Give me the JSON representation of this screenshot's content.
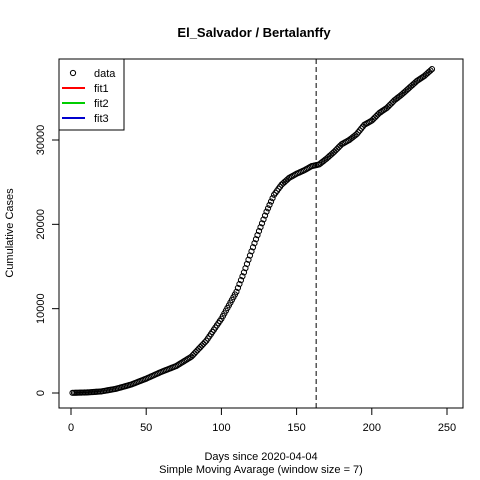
{
  "chart_data": {
    "type": "scatter",
    "title": "El_Salvador / Bertalanffy",
    "xlabel": "Days since 2020-04-04",
    "subtitle": "Simple Moving Avarage (window size = 7)",
    "ylabel": "Cumulative Cases",
    "xlim": [
      0,
      250
    ],
    "ylim": [
      0,
      40000
    ],
    "xticks": [
      0,
      50,
      100,
      150,
      200,
      250
    ],
    "yticks": [
      0,
      10000,
      20000,
      30000
    ],
    "vline_x": 163,
    "legend": {
      "position": "top-left",
      "entries": [
        {
          "label": "data",
          "type": "point",
          "color": "#000000"
        },
        {
          "label": "fit1",
          "type": "line",
          "color": "#ff0000"
        },
        {
          "label": "fit2",
          "type": "line",
          "color": "#00cd00"
        },
        {
          "label": "fit3",
          "type": "line",
          "color": "#0000cd"
        }
      ]
    },
    "series": [
      {
        "x": [
          1,
          10,
          20,
          30,
          40,
          50,
          60,
          70,
          80,
          90,
          100,
          110,
          115,
          120,
          125,
          130,
          135,
          140,
          145,
          150,
          155,
          160,
          165,
          170,
          175,
          180,
          185,
          190,
          195,
          200,
          205,
          210,
          215,
          220,
          225,
          230,
          235,
          240
        ],
        "y": [
          20,
          60,
          180,
          500,
          1000,
          1700,
          2500,
          3200,
          4300,
          6200,
          8800,
          12000,
          14300,
          16800,
          19200,
          21500,
          23500,
          24700,
          25500,
          26000,
          26400,
          26900,
          27100,
          27800,
          28600,
          29500,
          30000,
          30700,
          31800,
          32300,
          33200,
          33800,
          34700,
          35400,
          36200,
          37000,
          37600,
          38400
        ]
      }
    ]
  }
}
